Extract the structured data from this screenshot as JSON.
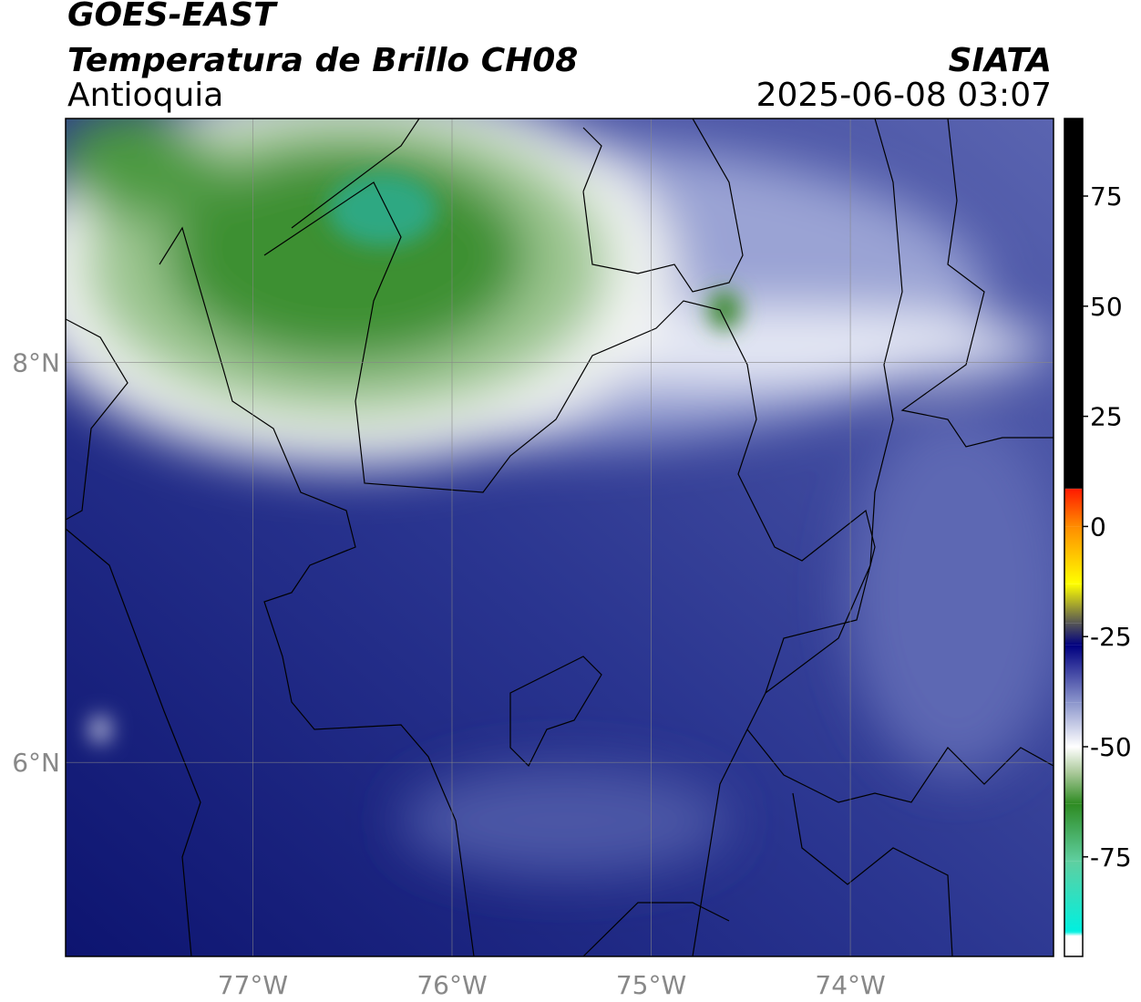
{
  "header": {
    "title": "GOES-EAST",
    "subtitle": "Temperatura de Brillo CH08",
    "region": "Antioquia",
    "agency": "SIATA",
    "datetime": "2025-06-08 03:07"
  },
  "chart_data": {
    "type": "map",
    "xlim": [
      -77.94,
      -72.98
    ],
    "ylim": [
      5.03,
      9.22
    ],
    "xticks": [
      {
        "value": -77,
        "label": "77°W"
      },
      {
        "value": -76,
        "label": "76°W"
      },
      {
        "value": -75,
        "label": "75°W"
      },
      {
        "value": -74,
        "label": "74°W"
      }
    ],
    "yticks": [
      {
        "value": 6,
        "label": "6°N"
      },
      {
        "value": 8,
        "label": "8°N"
      }
    ],
    "grid": true,
    "colorbar": {
      "clim": [
        -97.6,
        92.6
      ],
      "ticks": [
        75,
        50,
        25,
        0,
        -25,
        -50,
        -75
      ],
      "stops": [
        {
          "value": 92.6,
          "color": "#000000"
        },
        {
          "value": 8.6,
          "color": "#000000"
        },
        {
          "value": 8.5,
          "color": "#ff1a00"
        },
        {
          "value": 0,
          "color": "#ff8c00"
        },
        {
          "value": -13,
          "color": "#ffff00"
        },
        {
          "value": -22,
          "color": "#555555"
        },
        {
          "value": -27,
          "color": "#000080"
        },
        {
          "value": -40,
          "color": "#8c96cc"
        },
        {
          "value": -50,
          "color": "#ffffff"
        },
        {
          "value": -56,
          "color": "#a8c898"
        },
        {
          "value": -63,
          "color": "#2e8b22"
        },
        {
          "value": -76,
          "color": "#5fcfa0"
        },
        {
          "value": -92,
          "color": "#00f0e0"
        },
        {
          "value": -93,
          "color": "#ffffff"
        },
        {
          "value": -97.6,
          "color": "#ffffff"
        }
      ]
    }
  }
}
